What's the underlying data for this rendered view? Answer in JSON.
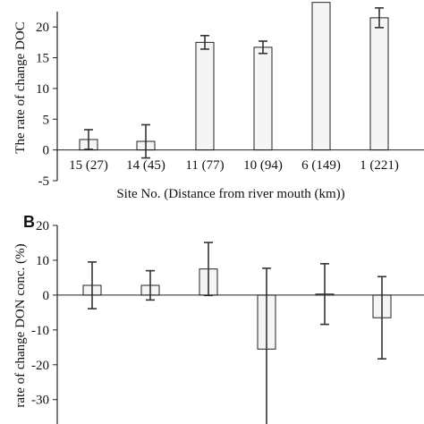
{
  "chart_data": [
    {
      "type": "bar",
      "panel": "",
      "categories": [
        "15 (27)",
        "14 (45)",
        "11 (77)",
        "10 (94)",
        "6 (149)",
        "1 (221)"
      ],
      "values": [
        1.7,
        1.4,
        17.5,
        16.7,
        24,
        21.5
      ],
      "errors": [
        1.6,
        2.7,
        1.1,
        1.0,
        0,
        1.6
      ],
      "ylabel": "The rate of change DOC",
      "xlabel": "Site No. (Distance from river mouth (km))",
      "ylim": [
        -5,
        22.5
      ],
      "yticks": [
        "-5",
        "0",
        "5",
        "10",
        "15",
        "20"
      ],
      "grid": false
    },
    {
      "type": "bar",
      "panel": "B",
      "categories": [
        "15 (27)",
        "14 (45)",
        "11 (77)",
        "10 (94)",
        "6 (149)",
        "1 (221)"
      ],
      "values": [
        2.8,
        2.8,
        7.5,
        -15.5,
        0.3,
        -6.5
      ],
      "errors": [
        6.7,
        4.2,
        7.6,
        23.2,
        8.7,
        11.8
      ],
      "ylabel": "rate of change DON conc. (%)",
      "xlabel": "",
      "ylim": [
        -37,
        20
      ],
      "yticks": [
        "20",
        "10",
        "0",
        "-10",
        "-20",
        "-30"
      ],
      "grid": false
    }
  ]
}
